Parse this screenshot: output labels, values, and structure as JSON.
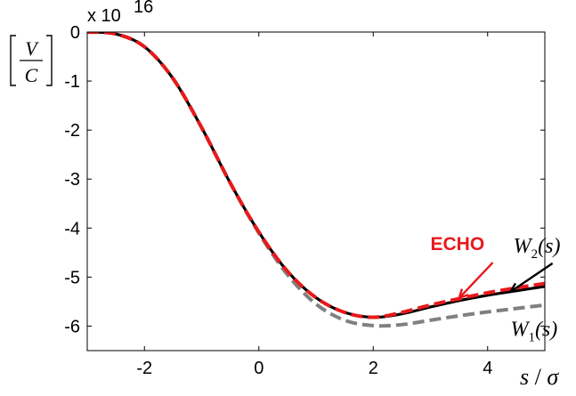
{
  "chart_data": {
    "type": "line",
    "title": "",
    "exponent_label": "x 10",
    "exponent_power": "16",
    "ylabel": {
      "numerator": "V",
      "denominator": "C"
    },
    "xlabel": {
      "s": "s",
      "slash": " / ",
      "sigma": "σ"
    },
    "xlim": [
      -3,
      5
    ],
    "ylim": [
      -6.5,
      0
    ],
    "xticks": [
      -2,
      0,
      2,
      4
    ],
    "xtick_labels": [
      "-2",
      "0",
      "2",
      "4"
    ],
    "yticks": [
      0,
      -1,
      -2,
      -3,
      -4,
      -5,
      -6
    ],
    "ytick_labels": [
      "0",
      "-1",
      "-2",
      "-3",
      "-4",
      "-5",
      "-6"
    ],
    "grid": false,
    "legend": "none",
    "series": [
      {
        "name": "W1(s)",
        "color": "#808080",
        "style": "dashed",
        "x": [
          -3,
          -2.5,
          -2,
          -1.5,
          -1,
          -0.5,
          0,
          0.5,
          1,
          1.5,
          2,
          2.5,
          3,
          3.5,
          4,
          4.5,
          5
        ],
        "y": [
          0,
          -0.04,
          -0.3,
          -0.95,
          -1.95,
          -3.08,
          -4.1,
          -4.95,
          -5.55,
          -5.88,
          -5.99,
          -5.97,
          -5.88,
          -5.79,
          -5.71,
          -5.64,
          -5.57
        ]
      },
      {
        "name": "W2(s)",
        "color": "#000000",
        "style": "solid",
        "x": [
          -3,
          -2.5,
          -2,
          -1.5,
          -1,
          -0.5,
          0,
          0.5,
          1,
          1.5,
          2,
          2.5,
          3,
          3.5,
          4,
          4.5,
          5
        ],
        "y": [
          0,
          -0.04,
          -0.3,
          -0.95,
          -1.95,
          -3.08,
          -4.08,
          -4.88,
          -5.42,
          -5.72,
          -5.82,
          -5.75,
          -5.61,
          -5.48,
          -5.37,
          -5.28,
          -5.19
        ]
      },
      {
        "name": "ECHO",
        "color": "#e8191c",
        "style": "dashed",
        "x": [
          -3,
          -2.5,
          -2,
          -1.5,
          -1,
          -0.5,
          0,
          0.5,
          1,
          1.5,
          2,
          2.5,
          3,
          3.5,
          4,
          4.5,
          5
        ],
        "y": [
          0,
          -0.04,
          -0.3,
          -0.95,
          -1.95,
          -3.08,
          -4.08,
          -4.88,
          -5.42,
          -5.72,
          -5.82,
          -5.72,
          -5.57,
          -5.44,
          -5.32,
          -5.22,
          -5.13
        ]
      }
    ],
    "annotations": [
      {
        "text": "ECHO",
        "color": "#e8191c",
        "arrow_to": [
          3.5,
          -5.43
        ],
        "text_at": [
          3.0,
          -4.45
        ]
      },
      {
        "text": "W2(s)",
        "main": "W",
        "sub": "2",
        "tail": "(s)",
        "arrow_to": [
          4.4,
          -5.3
        ],
        "text_at": [
          4.45,
          -4.5
        ]
      },
      {
        "text": "W1(s)",
        "main": "W",
        "sub": "1",
        "tail": "(s)",
        "text_at": [
          4.4,
          -6.2
        ]
      }
    ]
  }
}
